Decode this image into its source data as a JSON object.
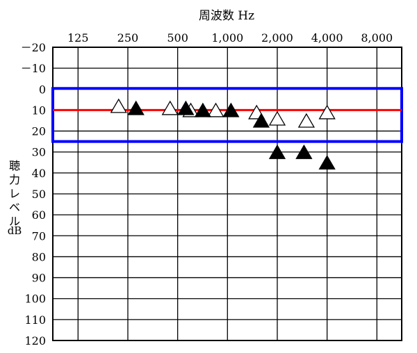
{
  "chart_data": {
    "type": "scatter",
    "title": "周波数 Hz",
    "ylabel": "聴力レベル dB",
    "ylabel_chars": [
      "聴",
      "力",
      "レ",
      "ベ",
      "ル"
    ],
    "ylabel_unit": "dB",
    "x_tick_labels": [
      "125",
      "250",
      "500",
      "1,000",
      "2,000",
      "4,000",
      "8,000"
    ],
    "x_ticks": [
      125,
      250,
      500,
      1000,
      2000,
      4000,
      8000
    ],
    "x_scale": "log2",
    "xlim": [
      88,
      11300
    ],
    "y_tick_labels": [
      "－20",
      "－10",
      "0",
      "10",
      "20",
      "30",
      "40",
      "50",
      "60",
      "70",
      "80",
      "90",
      "100",
      "110",
      "120"
    ],
    "y_ticks": [
      -20,
      -10,
      0,
      10,
      20,
      30,
      40,
      50,
      60,
      70,
      80,
      90,
      100,
      110,
      120
    ],
    "ylim": [
      -20,
      120
    ],
    "y_inverted": true,
    "grid": true,
    "series": [
      {
        "marker": "open-triangle",
        "points": [
          {
            "x": 220,
            "y": 8
          },
          {
            "x": 450,
            "y": 9
          },
          {
            "x": 600,
            "y": 10
          },
          {
            "x": 850,
            "y": 10
          },
          {
            "x": 1500,
            "y": 11
          },
          {
            "x": 2000,
            "y": 14
          },
          {
            "x": 3000,
            "y": 15
          },
          {
            "x": 4000,
            "y": 11
          }
        ]
      },
      {
        "marker": "filled-triangle",
        "points": [
          {
            "x": 280,
            "y": 9
          },
          {
            "x": 560,
            "y": 9
          },
          {
            "x": 710,
            "y": 10
          },
          {
            "x": 1050,
            "y": 10
          },
          {
            "x": 1600,
            "y": 15
          },
          {
            "x": 2000,
            "y": 30
          },
          {
            "x": 2900,
            "y": 30
          },
          {
            "x": 4000,
            "y": 35
          }
        ]
      }
    ],
    "reference_line": {
      "y": 10,
      "color": "#ff0000"
    },
    "highlight_box": {
      "y_range": [
        0,
        25
      ],
      "color": "#0000ff"
    }
  }
}
